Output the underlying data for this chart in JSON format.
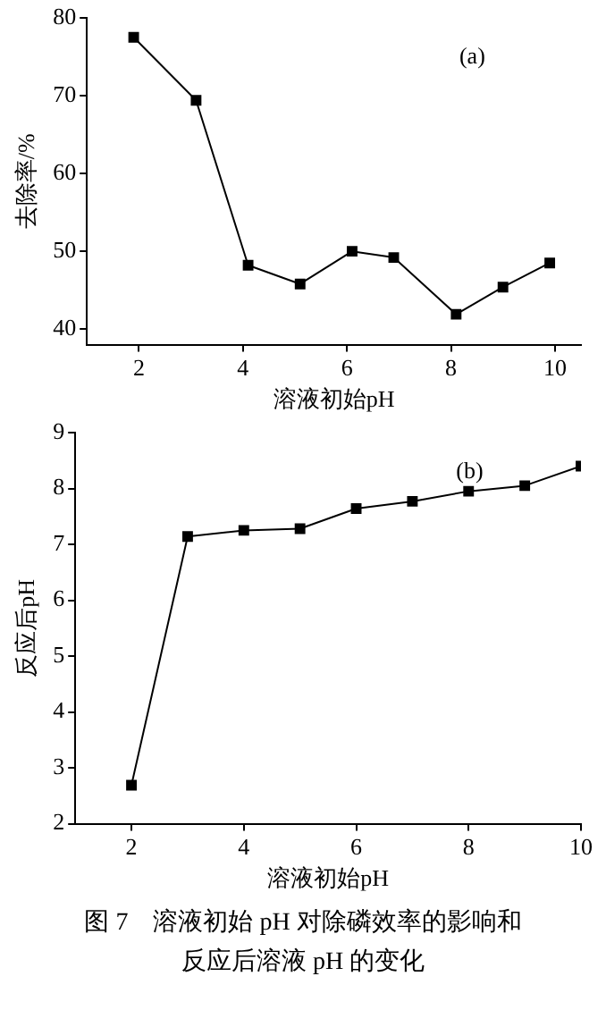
{
  "chart_data": [
    {
      "type": "line",
      "xlabel": "溶液初始pH",
      "ylabel": "去除率/%",
      "annotations": [
        "(a)"
      ],
      "x": [
        1.9,
        3.1,
        4.1,
        5.1,
        6.1,
        6.9,
        8.1,
        9,
        9.9
      ],
      "series": [
        {
          "color": "#000000",
          "values": [
            77.5,
            69.4,
            48.2,
            45.8,
            50.0,
            49.2,
            41.9,
            45.4,
            48.5
          ]
        }
      ],
      "xlim": [
        1,
        10.5
      ],
      "xticks": [
        2,
        4,
        6,
        8,
        10
      ],
      "ylim": [
        38,
        80
      ],
      "yticks": [
        40,
        50,
        60,
        70,
        80
      ],
      "grid": false,
      "legend": false,
      "marker": "square",
      "line_style": "solid"
    },
    {
      "type": "line",
      "xlabel": "溶液初始pH",
      "ylabel": "反应后pH",
      "annotations": [
        "(b)",
        "图 7　溶液初始 pH 对除磷效率的影响和反应后溶液 pH 的变化"
      ],
      "x": [
        2,
        3,
        4,
        5,
        6,
        7,
        8,
        9,
        10
      ],
      "series": [
        {
          "color": "#000000",
          "values": [
            2.69,
            7.14,
            7.25,
            7.28,
            7.64,
            7.77,
            7.95,
            8.05,
            8.4
          ]
        }
      ],
      "xlim": [
        1,
        10
      ],
      "xticks": [
        2,
        4,
        6,
        8,
        10
      ],
      "ylim": [
        2,
        9
      ],
      "yticks": [
        2,
        3,
        4,
        5,
        6,
        7,
        8,
        9
      ],
      "grid": false,
      "legend": false,
      "marker": "square",
      "line_style": "solid"
    }
  ]
}
